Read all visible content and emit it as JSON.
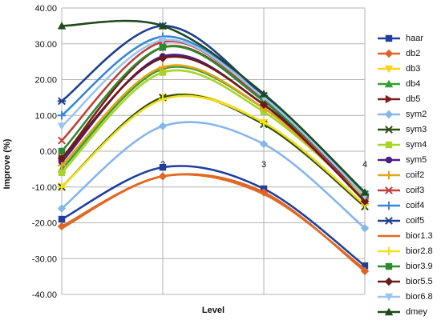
{
  "chart_data": {
    "type": "line",
    "xlabel": "Level",
    "ylabel": "Improve (%)",
    "ylim": [
      -40,
      40
    ],
    "xlim": [
      1,
      4
    ],
    "grid": true,
    "legend_position": "right",
    "x": [
      1,
      2,
      3,
      4
    ],
    "x_tick_labels": [
      "2",
      "3",
      "4"
    ],
    "y_tick_labels": [
      "40.00",
      "30.00",
      "20.00",
      "10.00",
      "0.00",
      "-10.00",
      "-20.00",
      "-30.00",
      "-40.00"
    ],
    "series": [
      {
        "name": "haar",
        "color": "#1f3f9f",
        "marker": "square",
        "values": [
          -19,
          -4.5,
          -10.5,
          -32
        ]
      },
      {
        "name": "db2",
        "color": "#e0622a",
        "marker": "diamond",
        "values": [
          -21,
          -7,
          -11.5,
          -33.5
        ]
      },
      {
        "name": "db3",
        "color": "#ffd319",
        "marker": "triangle-down",
        "values": [
          -10,
          15,
          8,
          -15
        ]
      },
      {
        "name": "db4",
        "color": "#30a030",
        "marker": "triangle",
        "values": [
          -5,
          23,
          12,
          -12
        ]
      },
      {
        "name": "db5",
        "color": "#7e1e1e",
        "marker": "triangle-right",
        "values": [
          -2,
          29,
          14,
          -13
        ]
      },
      {
        "name": "sym2",
        "color": "#86b6ea",
        "marker": "diamond",
        "values": [
          -16,
          7,
          2,
          -21.5
        ]
      },
      {
        "name": "sym3",
        "color": "#2e4b10",
        "marker": "x",
        "values": [
          -10,
          15,
          7.5,
          -15.5
        ]
      },
      {
        "name": "sym4",
        "color": "#a8d42a",
        "marker": "square",
        "values": [
          -6,
          22,
          11,
          -13
        ]
      },
      {
        "name": "sym5",
        "color": "#4a1e86",
        "marker": "circle",
        "values": [
          -3,
          26.5,
          13,
          -12
        ]
      },
      {
        "name": "coif2",
        "color": "#e6a31b",
        "marker": "plus",
        "values": [
          -4,
          23.5,
          12,
          -13.5
        ]
      },
      {
        "name": "coif3",
        "color": "#c0403a",
        "marker": "x",
        "values": [
          3,
          30.5,
          14.5,
          -14
        ]
      },
      {
        "name": "coif4",
        "color": "#3a86d6",
        "marker": "plus",
        "values": [
          10,
          32,
          15,
          -12.5
        ]
      },
      {
        "name": "coif5",
        "color": "#1e3e8e",
        "marker": "star",
        "values": [
          14,
          35,
          15.5,
          -12
        ]
      },
      {
        "name": "bior1.3",
        "color": "#e06a20",
        "marker": "none",
        "values": [
          -21.5,
          -7,
          -12,
          -33
        ]
      },
      {
        "name": "bior2.8",
        "color": "#f0e020",
        "marker": "plus",
        "values": [
          -10,
          14.5,
          8,
          -15
        ]
      },
      {
        "name": "bior3.9",
        "color": "#2e8a2e",
        "marker": "square",
        "values": [
          0,
          29,
          14,
          -12
        ]
      },
      {
        "name": "bior5.5",
        "color": "#6a1a1a",
        "marker": "diamond",
        "values": [
          -2,
          26,
          13,
          -14
        ]
      },
      {
        "name": "bior6.8",
        "color": "#9cc4f0",
        "marker": "triangle-down",
        "values": [
          7,
          31,
          15,
          -12.5
        ]
      },
      {
        "name": "dmey",
        "color": "#1e4a1e",
        "marker": "triangle",
        "values": [
          35,
          35,
          16,
          -11.5
        ]
      }
    ]
  }
}
